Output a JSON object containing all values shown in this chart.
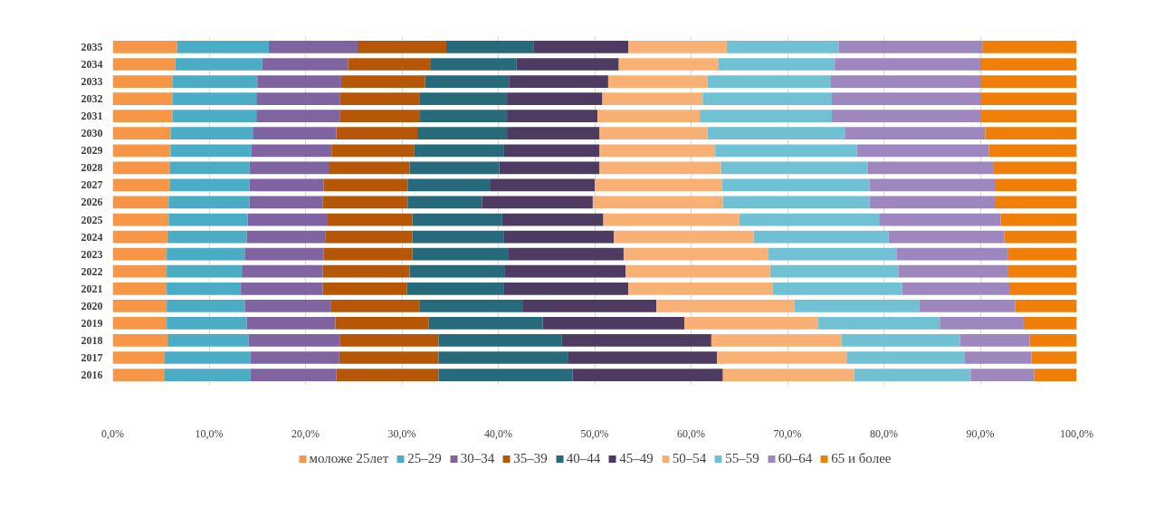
{
  "chart_data": {
    "type": "bar",
    "orientation": "horizontal",
    "stacked": true,
    "categories": [
      "2035",
      "2034",
      "2033",
      "2032",
      "2031",
      "2030",
      "2029",
      "2028",
      "2027",
      "2026",
      "2025",
      "2024",
      "2023",
      "2022",
      "2021",
      "2020",
      "2019",
      "2018",
      "2017",
      "2016"
    ],
    "series": [
      {
        "name": "моложе 25лет",
        "color": "#f79646",
        "values": [
          6.7,
          6.5,
          6.2,
          6.2,
          6.2,
          6.0,
          6.0,
          5.9,
          5.9,
          5.8,
          5.8,
          5.7,
          5.6,
          5.6,
          5.6,
          5.6,
          5.6,
          5.7,
          5.4,
          5.4
        ]
      },
      {
        "name": "25–29",
        "color": "#4bacc6",
        "values": [
          9.5,
          9.0,
          8.8,
          8.7,
          8.7,
          8.6,
          8.4,
          8.3,
          8.3,
          8.4,
          8.2,
          8.2,
          8.1,
          7.8,
          7.7,
          8.1,
          8.3,
          8.4,
          8.9,
          8.9
        ]
      },
      {
        "name": "30–34",
        "color": "#8064a2",
        "values": [
          9.2,
          8.9,
          8.7,
          8.7,
          8.7,
          8.6,
          8.3,
          8.2,
          7.7,
          7.6,
          8.3,
          8.2,
          8.2,
          8.4,
          8.5,
          8.9,
          9.2,
          9.5,
          9.2,
          8.9
        ]
      },
      {
        "name": "35–39",
        "color": "#b65708",
        "values": [
          9.2,
          8.6,
          8.7,
          8.2,
          8.2,
          8.4,
          8.6,
          8.4,
          8.7,
          8.8,
          8.8,
          9.0,
          9.2,
          9.0,
          8.7,
          9.2,
          9.7,
          10.2,
          10.3,
          10.6
        ]
      },
      {
        "name": "40–44",
        "color": "#276a7c",
        "values": [
          9.1,
          8.9,
          8.7,
          9.1,
          9.1,
          9.3,
          9.3,
          9.3,
          8.6,
          7.7,
          9.3,
          9.5,
          9.9,
          9.9,
          10.1,
          10.7,
          11.8,
          12.8,
          13.4,
          13.9
        ]
      },
      {
        "name": "45–49",
        "color": "#4d3b62",
        "values": [
          9.8,
          10.6,
          10.3,
          9.9,
          9.4,
          9.6,
          9.9,
          10.4,
          10.8,
          11.5,
          10.5,
          11.4,
          12.0,
          12.5,
          12.9,
          13.9,
          14.7,
          15.5,
          15.5,
          15.6
        ]
      },
      {
        "name": "50–54",
        "color": "#f9b074",
        "values": [
          10.2,
          10.3,
          10.3,
          10.4,
          10.6,
          11.2,
          12.0,
          12.6,
          13.2,
          13.5,
          14.1,
          14.5,
          15.0,
          15.0,
          15.0,
          14.3,
          13.9,
          13.5,
          13.5,
          13.6
        ]
      },
      {
        "name": "55–59",
        "color": "#6fc1d3",
        "values": [
          11.6,
          12.1,
          12.8,
          13.4,
          13.7,
          14.3,
          14.7,
          15.2,
          15.3,
          15.2,
          14.5,
          14.0,
          13.3,
          13.3,
          13.4,
          13.0,
          12.6,
          12.3,
          12.2,
          12.1
        ]
      },
      {
        "name": "60–64",
        "color": "#9e86bf",
        "values": [
          14.9,
          15.1,
          15.5,
          15.4,
          15.4,
          14.5,
          13.7,
          13.1,
          13.0,
          13.0,
          12.6,
          12.0,
          11.6,
          11.4,
          11.2,
          9.9,
          8.7,
          7.2,
          6.9,
          6.6
        ]
      },
      {
        "name": "65 и более",
        "color": "#f07f09",
        "values": [
          9.8,
          10.0,
          10.0,
          10.0,
          10.0,
          9.5,
          9.1,
          8.6,
          8.5,
          8.5,
          7.9,
          7.5,
          7.1,
          7.1,
          6.9,
          6.4,
          5.5,
          4.9,
          4.7,
          4.4
        ]
      }
    ],
    "xlim": [
      0,
      100
    ],
    "xticks": [
      {
        "value": 0,
        "label": "0,0%"
      },
      {
        "value": 10,
        "label": "10,0%"
      },
      {
        "value": 20,
        "label": "20,0%"
      },
      {
        "value": 30,
        "label": "30,0%"
      },
      {
        "value": 40,
        "label": "40,0%"
      },
      {
        "value": 50,
        "label": "50,0%"
      },
      {
        "value": 60,
        "label": "60,0%"
      },
      {
        "value": 70,
        "label": "70,0%"
      },
      {
        "value": 80,
        "label": "80,0%"
      },
      {
        "value": 90,
        "label": "90,0%"
      },
      {
        "value": 100,
        "label": "100,0%"
      }
    ],
    "grid": "x",
    "legend": "bottom"
  }
}
